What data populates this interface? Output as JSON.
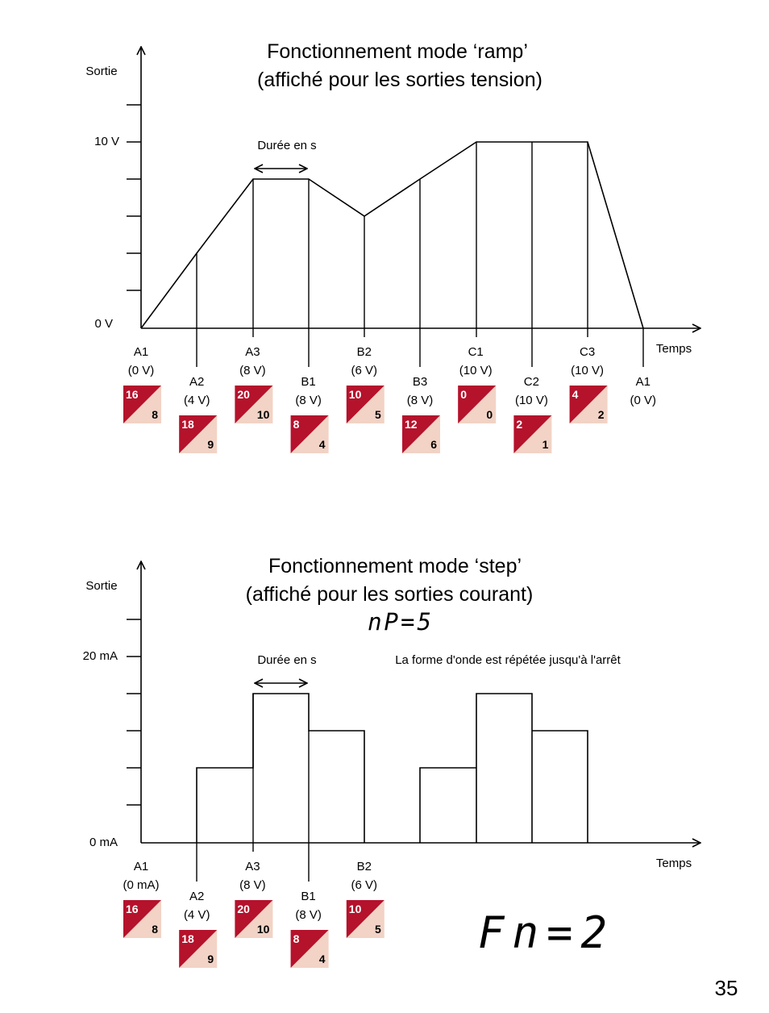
{
  "page_number": "35",
  "colors": {
    "badge_dark": "#b5122c",
    "badge_light": "#f2d3c5",
    "line": "#000000"
  },
  "ramp": {
    "title_line1": "Fonctionnement mode ‘ramp’",
    "title_line2": "(affiché pour les sorties tension)",
    "y_axis_label": "Sortie",
    "x_axis_label": "Temps",
    "y_tick_top": "10 V",
    "y_tick_bottom": "0 V",
    "duration_label": "Durée en s",
    "points": [
      {
        "name": "A1",
        "value": "(0 V)",
        "level": 0,
        "badge_top": "16",
        "badge_bottom": "8"
      },
      {
        "name": "A2",
        "value": "(4 V)",
        "level": 4,
        "badge_top": "18",
        "badge_bottom": "9"
      },
      {
        "name": "A3",
        "value": "(8 V)",
        "level": 8,
        "badge_top": "20",
        "badge_bottom": "10"
      },
      {
        "name": "B1",
        "value": "(8 V)",
        "level": 8,
        "badge_top": "8",
        "badge_bottom": "4"
      },
      {
        "name": "B2",
        "value": "(6 V)",
        "level": 6,
        "badge_top": "10",
        "badge_bottom": "5"
      },
      {
        "name": "B3",
        "value": "(8 V)",
        "level": 8,
        "badge_top": "12",
        "badge_bottom": "6"
      },
      {
        "name": "C1",
        "value": "(10 V)",
        "level": 10,
        "badge_top": "0",
        "badge_bottom": "0"
      },
      {
        "name": "C2",
        "value": "(10 V)",
        "level": 10,
        "badge_top": "2",
        "badge_bottom": "1"
      },
      {
        "name": "C3",
        "value": "(10 V)",
        "level": 10,
        "badge_top": "4",
        "badge_bottom": "2"
      },
      {
        "name": "A1",
        "value": "(0 V)",
        "level": 0,
        "badge_top": "",
        "badge_bottom": ""
      }
    ]
  },
  "step": {
    "title_line1": "Fonctionnement mode ‘step’",
    "title_line2": "(affiché pour les sorties courant)",
    "lcd_np": "nP=5",
    "y_axis_label": "Sortie",
    "x_axis_label": "Temps",
    "y_tick_top": "20 mA",
    "y_tick_bottom": "0 mA",
    "duration_label": "Durée en s",
    "repeat_note": "La forme d'onde est répétée jusqu'à l'arrêt",
    "points": [
      {
        "name": "A1",
        "value": "(0 mA)",
        "badge_top": "16",
        "badge_bottom": "8"
      },
      {
        "name": "A2",
        "value": "(4 V)",
        "badge_top": "18",
        "badge_bottom": "9"
      },
      {
        "name": "A3",
        "value": "(8 V)",
        "badge_top": "20",
        "badge_bottom": "10"
      },
      {
        "name": "B1",
        "value": "(8 V)",
        "badge_top": "8",
        "badge_bottom": "4"
      },
      {
        "name": "B2",
        "value": "(6 V)",
        "badge_top": "10",
        "badge_bottom": "5"
      }
    ],
    "step_levels": [
      4,
      8,
      6,
      0,
      4,
      8,
      6
    ],
    "lcd_fn": "Fn=2"
  }
}
